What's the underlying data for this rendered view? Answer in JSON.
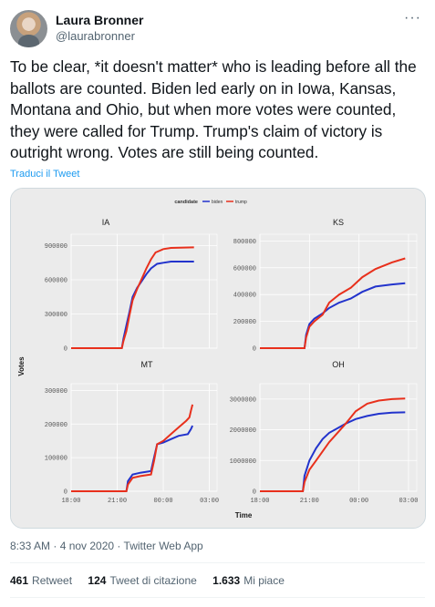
{
  "tweet": {
    "display_name": "Laura Bronner",
    "handle": "@laurabronner",
    "more_label": "···",
    "text": "To be clear, *it doesn't matter* who is leading before all the ballots are counted. Biden led early on in Iowa, Kansas, Montana and Ohio, but when more votes were counted, they were called for Trump. Trump's claim of victory is outright wrong. Votes are still being counted.",
    "translate_label": "Traduci il Tweet",
    "timestamp": "8:33 AM · 4 nov 2020 · Twitter Web App",
    "stats": [
      {
        "count": "461",
        "label": "Retweet"
      },
      {
        "count": "124",
        "label": "Tweet di citazione"
      },
      {
        "count": "1.633",
        "label": "Mi piace"
      }
    ]
  },
  "colors": {
    "biden": "#2233cc",
    "trump": "#e8301c",
    "panel_bg": "#ebebeb",
    "strip_bg": "#d9d9d9"
  },
  "chart_data": {
    "type": "line",
    "legend_title": "candidate",
    "legend_position": "top",
    "xlabel": "Time",
    "ylabel": "Votes",
    "x_ticks": [
      "18:00",
      "21:00",
      "00:00",
      "03:00"
    ],
    "x_range_hours": [
      18,
      27.5
    ],
    "grid": true,
    "panels": [
      {
        "title": "IA",
        "y_ticks": [
          "0",
          "300000",
          "600000",
          "900000"
        ],
        "ylim": [
          0,
          1000000
        ],
        "series": [
          {
            "name": "biden",
            "points": [
              [
                18.0,
                0
              ],
              [
                21.3,
                0
              ],
              [
                21.4,
                80000
              ],
              [
                21.6,
                200000
              ],
              [
                21.8,
                320000
              ],
              [
                22.0,
                450000
              ],
              [
                22.3,
                530000
              ],
              [
                22.6,
                590000
              ],
              [
                22.9,
                650000
              ],
              [
                23.2,
                700000
              ],
              [
                23.6,
                740000
              ],
              [
                24.0,
                750000
              ],
              [
                24.5,
                760000
              ],
              [
                26.0,
                760000
              ]
            ]
          },
          {
            "name": "trump",
            "points": [
              [
                18.0,
                0
              ],
              [
                21.3,
                0
              ],
              [
                21.4,
                60000
              ],
              [
                21.6,
                150000
              ],
              [
                21.8,
                290000
              ],
              [
                22.0,
                420000
              ],
              [
                22.3,
                520000
              ],
              [
                22.6,
                610000
              ],
              [
                22.9,
                700000
              ],
              [
                23.2,
                780000
              ],
              [
                23.5,
                840000
              ],
              [
                24.0,
                870000
              ],
              [
                24.5,
                880000
              ],
              [
                26.0,
                885000
              ]
            ]
          }
        ]
      },
      {
        "title": "KS",
        "y_ticks": [
          "0",
          "200000",
          "400000",
          "600000",
          "800000"
        ],
        "ylim": [
          0,
          850000
        ],
        "series": [
          {
            "name": "biden",
            "points": [
              [
                18.0,
                0
              ],
              [
                20.7,
                0
              ],
              [
                20.8,
                100000
              ],
              [
                21.0,
                180000
              ],
              [
                21.3,
                220000
              ],
              [
                21.8,
                260000
              ],
              [
                22.2,
                300000
              ],
              [
                22.8,
                340000
              ],
              [
                23.5,
                370000
              ],
              [
                24.2,
                420000
              ],
              [
                25.0,
                460000
              ],
              [
                26.0,
                475000
              ],
              [
                26.8,
                485000
              ]
            ]
          },
          {
            "name": "trump",
            "points": [
              [
                18.0,
                0
              ],
              [
                20.7,
                0
              ],
              [
                20.8,
                80000
              ],
              [
                21.0,
                160000
              ],
              [
                21.3,
                200000
              ],
              [
                21.8,
                250000
              ],
              [
                22.2,
                340000
              ],
              [
                22.8,
                400000
              ],
              [
                23.5,
                450000
              ],
              [
                24.2,
                530000
              ],
              [
                25.0,
                590000
              ],
              [
                26.0,
                640000
              ],
              [
                26.8,
                670000
              ]
            ]
          }
        ]
      },
      {
        "title": "MT",
        "y_ticks": [
          "0",
          "100000",
          "200000",
          "300000"
        ],
        "ylim": [
          0,
          320000
        ],
        "series": [
          {
            "name": "biden",
            "points": [
              [
                18.0,
                0
              ],
              [
                21.6,
                0
              ],
              [
                21.7,
                30000
              ],
              [
                22.0,
                50000
              ],
              [
                22.5,
                55000
              ],
              [
                23.2,
                60000
              ],
              [
                23.4,
                100000
              ],
              [
                23.6,
                140000
              ],
              [
                24.0,
                145000
              ],
              [
                24.5,
                155000
              ],
              [
                25.0,
                165000
              ],
              [
                25.6,
                170000
              ],
              [
                25.8,
                185000
              ],
              [
                25.9,
                195000
              ]
            ]
          },
          {
            "name": "trump",
            "points": [
              [
                18.0,
                0
              ],
              [
                21.6,
                0
              ],
              [
                21.7,
                20000
              ],
              [
                22.0,
                40000
              ],
              [
                22.5,
                45000
              ],
              [
                23.2,
                50000
              ],
              [
                23.4,
                90000
              ],
              [
                23.6,
                140000
              ],
              [
                24.0,
                150000
              ],
              [
                24.5,
                170000
              ],
              [
                25.0,
                190000
              ],
              [
                25.5,
                210000
              ],
              [
                25.7,
                220000
              ],
              [
                25.8,
                240000
              ],
              [
                25.9,
                258000
              ]
            ]
          }
        ]
      },
      {
        "title": "OH",
        "y_ticks": [
          "0",
          "1000000",
          "2000000",
          "3000000"
        ],
        "ylim": [
          0,
          3500000
        ],
        "series": [
          {
            "name": "biden",
            "points": [
              [
                18.0,
                0
              ],
              [
                20.6,
                0
              ],
              [
                20.7,
                500000
              ],
              [
                21.0,
                1000000
              ],
              [
                21.4,
                1400000
              ],
              [
                21.8,
                1700000
              ],
              [
                22.2,
                1900000
              ],
              [
                22.7,
                2050000
              ],
              [
                23.2,
                2200000
              ],
              [
                23.8,
                2350000
              ],
              [
                24.5,
                2450000
              ],
              [
                25.2,
                2520000
              ],
              [
                26.0,
                2560000
              ],
              [
                26.8,
                2570000
              ]
            ]
          },
          {
            "name": "trump",
            "points": [
              [
                18.0,
                0
              ],
              [
                20.6,
                0
              ],
              [
                20.7,
                300000
              ],
              [
                21.0,
                700000
              ],
              [
                21.4,
                1000000
              ],
              [
                21.8,
                1300000
              ],
              [
                22.2,
                1600000
              ],
              [
                22.7,
                1900000
              ],
              [
                23.2,
                2200000
              ],
              [
                23.8,
                2600000
              ],
              [
                24.5,
                2850000
              ],
              [
                25.2,
                2950000
              ],
              [
                26.0,
                3000000
              ],
              [
                26.8,
                3020000
              ]
            ]
          }
        ]
      }
    ]
  }
}
